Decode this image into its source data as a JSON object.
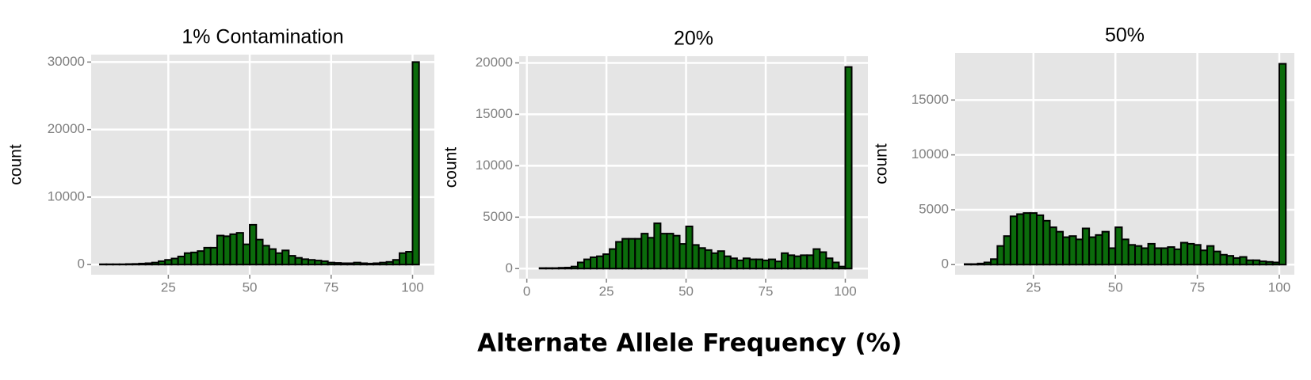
{
  "xlabel": "Alternate Allele Frequency (%)",
  "chart_data": [
    {
      "type": "histogram",
      "title": "1% Contamination",
      "ylabel": "count",
      "color": "#0b6b0b",
      "edgecolor": "#000000",
      "grid": true,
      "bins": [
        4,
        6,
        8,
        10,
        12,
        14,
        16,
        18,
        20,
        22,
        24,
        26,
        28,
        30,
        32,
        34,
        36,
        38,
        40,
        42,
        44,
        46,
        48,
        50,
        52,
        54,
        56,
        58,
        60,
        62,
        64,
        66,
        68,
        70,
        72,
        74,
        76,
        78,
        80,
        82,
        84,
        86,
        88,
        90,
        92,
        94,
        96,
        98,
        100,
        102
      ],
      "values": [
        50,
        50,
        50,
        50,
        80,
        100,
        150,
        200,
        300,
        500,
        700,
        900,
        1200,
        1700,
        1800,
        2000,
        2500,
        2500,
        4300,
        4200,
        4500,
        4700,
        3000,
        5900,
        3700,
        2800,
        2300,
        1700,
        2100,
        1300,
        1000,
        800,
        700,
        600,
        500,
        300,
        250,
        200,
        200,
        300,
        200,
        150,
        200,
        300,
        400,
        700,
        1700,
        1900,
        30000
      ],
      "xlim": [
        1.3,
        106.7
      ],
      "xticks": [
        25,
        50,
        75,
        100
      ],
      "ylim": [
        -1500,
        31100
      ],
      "yticks": [
        0,
        10000,
        20000,
        30000
      ]
    },
    {
      "type": "histogram",
      "title": "20%",
      "ylabel": "count",
      "color": "#0b6b0b",
      "edgecolor": "#000000",
      "grid": true,
      "bins": [
        4,
        6,
        8,
        10,
        12,
        14,
        16,
        18,
        20,
        22,
        24,
        26,
        28,
        30,
        32,
        34,
        36,
        38,
        40,
        42,
        44,
        46,
        48,
        50,
        52,
        54,
        56,
        58,
        60,
        62,
        64,
        66,
        68,
        70,
        72,
        74,
        76,
        78,
        80,
        82,
        84,
        86,
        88,
        90,
        92,
        94,
        96,
        98,
        100,
        102
      ],
      "values": [
        50,
        50,
        50,
        80,
        100,
        200,
        600,
        900,
        1100,
        1200,
        1400,
        1900,
        2600,
        2900,
        2900,
        2900,
        3400,
        3000,
        4400,
        3400,
        3400,
        3200,
        2400,
        4100,
        2300,
        2000,
        1800,
        1500,
        1700,
        1200,
        1000,
        800,
        1000,
        900,
        900,
        800,
        900,
        700,
        1500,
        1300,
        1200,
        1300,
        1300,
        1900,
        1600,
        1000,
        600,
        200,
        19600
      ],
      "xlim": [
        -2.4,
        107.1
      ],
      "xticks": [
        0,
        25,
        50,
        75,
        100
      ],
      "ylim": [
        -980,
        20650
      ],
      "yticks": [
        0,
        5000,
        10000,
        15000,
        20000
      ]
    },
    {
      "type": "histogram",
      "title": "50%",
      "ylabel": "count",
      "color": "#0b6b0b",
      "edgecolor": "#000000",
      "grid": true,
      "bins": [
        4,
        6,
        8,
        10,
        12,
        14,
        16,
        18,
        20,
        22,
        24,
        26,
        28,
        30,
        32,
        34,
        36,
        38,
        40,
        42,
        44,
        46,
        48,
        50,
        52,
        54,
        56,
        58,
        60,
        62,
        64,
        66,
        68,
        70,
        72,
        74,
        76,
        78,
        80,
        82,
        84,
        86,
        88,
        90,
        92,
        94,
        96,
        98,
        100,
        102
      ],
      "values": [
        50,
        50,
        100,
        200,
        500,
        1700,
        2600,
        4400,
        4600,
        4700,
        4700,
        4500,
        4000,
        3400,
        3000,
        2500,
        2600,
        2300,
        3300,
        2500,
        2700,
        3000,
        1500,
        3400,
        2300,
        1800,
        1700,
        1500,
        1900,
        1500,
        1500,
        1600,
        1400,
        2000,
        1900,
        1800,
        1300,
        1700,
        1200,
        900,
        800,
        600,
        700,
        400,
        400,
        300,
        250,
        200,
        18300
      ],
      "xlim": [
        1.1,
        104.6
      ],
      "xticks": [
        25,
        50,
        75,
        100
      ],
      "ylim": [
        -920,
        19280
      ],
      "yticks": [
        0,
        5000,
        10000,
        15000
      ]
    }
  ]
}
